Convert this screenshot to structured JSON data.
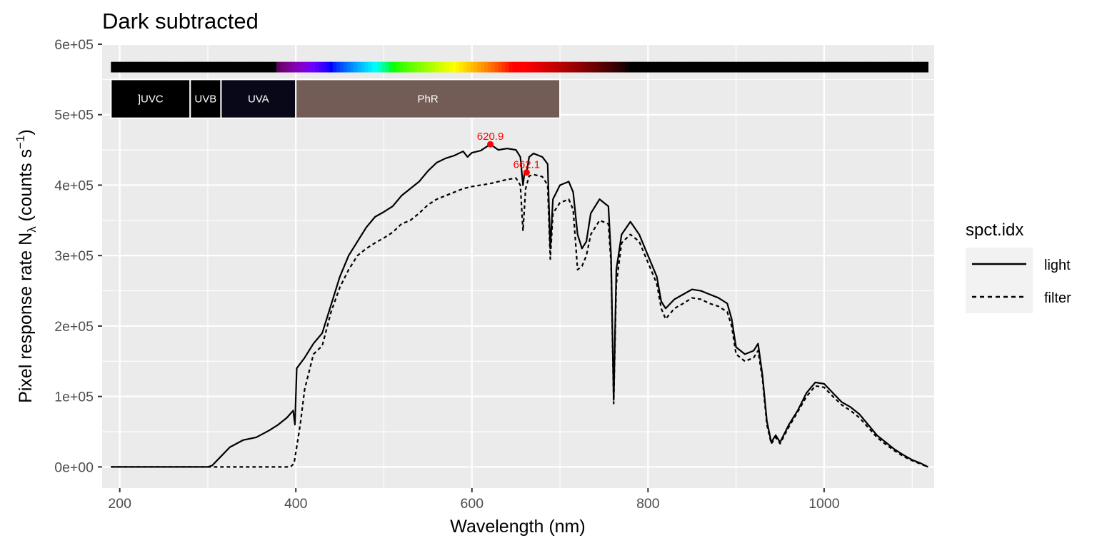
{
  "chart_data": {
    "type": "line",
    "title": "Dark subtracted",
    "xlabel": "Wavelength (nm)",
    "ylabel": {
      "prefix": "Pixel  response  rate  N",
      "sub": "λ",
      "mid": "  (counts  s",
      "sup": "−1",
      "suffix": ")"
    },
    "xlim": [
      180,
      1125
    ],
    "ylim": [
      -30000,
      600000
    ],
    "x_ticks": [
      200,
      400,
      600,
      800,
      1000
    ],
    "x_tick_labels": [
      "200",
      "400",
      "600",
      "800",
      "1000"
    ],
    "y_ticks": [
      0,
      100000,
      200000,
      300000,
      400000,
      500000,
      600000
    ],
    "y_tick_labels": [
      "0e+00",
      "1e+05",
      "2e+05",
      "3e+05",
      "4e+05",
      "5e+05",
      "6e+05"
    ],
    "grid": true,
    "legend_position": "right",
    "legend_title": "spct.idx",
    "series": [
      {
        "name": "light",
        "dash": "solid",
        "points": [
          [
            190,
            0
          ],
          [
            250,
            0
          ],
          [
            300,
            0
          ],
          [
            305,
            2000
          ],
          [
            315,
            15000
          ],
          [
            325,
            28000
          ],
          [
            340,
            38000
          ],
          [
            355,
            42000
          ],
          [
            370,
            52000
          ],
          [
            380,
            60000
          ],
          [
            390,
            70000
          ],
          [
            397,
            80000
          ],
          [
            399,
            60000
          ],
          [
            401,
            140000
          ],
          [
            410,
            155000
          ],
          [
            420,
            175000
          ],
          [
            430,
            190000
          ],
          [
            440,
            230000
          ],
          [
            450,
            270000
          ],
          [
            460,
            300000
          ],
          [
            470,
            320000
          ],
          [
            480,
            340000
          ],
          [
            490,
            355000
          ],
          [
            500,
            362000
          ],
          [
            510,
            370000
          ],
          [
            520,
            385000
          ],
          [
            530,
            395000
          ],
          [
            540,
            405000
          ],
          [
            550,
            420000
          ],
          [
            560,
            432000
          ],
          [
            570,
            438000
          ],
          [
            580,
            442000
          ],
          [
            590,
            448000
          ],
          [
            595,
            440000
          ],
          [
            600,
            446000
          ],
          [
            610,
            449000
          ],
          [
            620.9,
            458000
          ],
          [
            630,
            450000
          ],
          [
            640,
            452000
          ],
          [
            650,
            450000
          ],
          [
            655,
            440000
          ],
          [
            658,
            400000
          ],
          [
            660,
            420000
          ],
          [
            662.1,
            418000
          ],
          [
            665,
            440000
          ],
          [
            670,
            445000
          ],
          [
            680,
            440000
          ],
          [
            686,
            430000
          ],
          [
            689,
            310000
          ],
          [
            692,
            380000
          ],
          [
            700,
            400000
          ],
          [
            710,
            405000
          ],
          [
            715,
            390000
          ],
          [
            720,
            330000
          ],
          [
            725,
            310000
          ],
          [
            730,
            320000
          ],
          [
            735,
            360000
          ],
          [
            745,
            380000
          ],
          [
            755,
            370000
          ],
          [
            758,
            300000
          ],
          [
            761,
            95000
          ],
          [
            764,
            280000
          ],
          [
            770,
            330000
          ],
          [
            780,
            348000
          ],
          [
            790,
            330000
          ],
          [
            800,
            300000
          ],
          [
            810,
            270000
          ],
          [
            815,
            235000
          ],
          [
            820,
            225000
          ],
          [
            830,
            238000
          ],
          [
            840,
            245000
          ],
          [
            850,
            252000
          ],
          [
            860,
            250000
          ],
          [
            870,
            245000
          ],
          [
            880,
            240000
          ],
          [
            890,
            232000
          ],
          [
            895,
            210000
          ],
          [
            900,
            170000
          ],
          [
            910,
            160000
          ],
          [
            920,
            165000
          ],
          [
            925,
            175000
          ],
          [
            930,
            130000
          ],
          [
            935,
            65000
          ],
          [
            940,
            35000
          ],
          [
            945,
            45000
          ],
          [
            950,
            35000
          ],
          [
            960,
            60000
          ],
          [
            970,
            80000
          ],
          [
            980,
            105000
          ],
          [
            990,
            120000
          ],
          [
            1000,
            118000
          ],
          [
            1010,
            105000
          ],
          [
            1020,
            92000
          ],
          [
            1030,
            85000
          ],
          [
            1040,
            75000
          ],
          [
            1050,
            60000
          ],
          [
            1060,
            45000
          ],
          [
            1070,
            35000
          ],
          [
            1080,
            25000
          ],
          [
            1090,
            17000
          ],
          [
            1100,
            10000
          ],
          [
            1110,
            5000
          ],
          [
            1118,
            0
          ]
        ]
      },
      {
        "name": "filter",
        "dash": "dashed",
        "points": [
          [
            190,
            0
          ],
          [
            250,
            0
          ],
          [
            300,
            0
          ],
          [
            350,
            0
          ],
          [
            380,
            0
          ],
          [
            394,
            0
          ],
          [
            398,
            5000
          ],
          [
            405,
            60000
          ],
          [
            410,
            110000
          ],
          [
            420,
            160000
          ],
          [
            430,
            172000
          ],
          [
            440,
            220000
          ],
          [
            450,
            255000
          ],
          [
            460,
            280000
          ],
          [
            470,
            300000
          ],
          [
            480,
            310000
          ],
          [
            490,
            318000
          ],
          [
            500,
            325000
          ],
          [
            510,
            333000
          ],
          [
            520,
            345000
          ],
          [
            530,
            350000
          ],
          [
            540,
            360000
          ],
          [
            550,
            372000
          ],
          [
            560,
            380000
          ],
          [
            570,
            385000
          ],
          [
            580,
            390000
          ],
          [
            590,
            395000
          ],
          [
            600,
            398000
          ],
          [
            610,
            400000
          ],
          [
            620,
            402000
          ],
          [
            630,
            405000
          ],
          [
            640,
            408000
          ],
          [
            650,
            410000
          ],
          [
            655,
            400000
          ],
          [
            658,
            335000
          ],
          [
            661,
            395000
          ],
          [
            665,
            413000
          ],
          [
            670,
            415000
          ],
          [
            680,
            412000
          ],
          [
            686,
            400000
          ],
          [
            689,
            295000
          ],
          [
            692,
            360000
          ],
          [
            700,
            375000
          ],
          [
            710,
            380000
          ],
          [
            715,
            365000
          ],
          [
            720,
            280000
          ],
          [
            725,
            285000
          ],
          [
            730,
            300000
          ],
          [
            735,
            330000
          ],
          [
            745,
            350000
          ],
          [
            755,
            345000
          ],
          [
            758,
            290000
          ],
          [
            761,
            90000
          ],
          [
            764,
            260000
          ],
          [
            770,
            318000
          ],
          [
            780,
            330000
          ],
          [
            790,
            320000
          ],
          [
            800,
            290000
          ],
          [
            810,
            260000
          ],
          [
            815,
            225000
          ],
          [
            820,
            210000
          ],
          [
            830,
            225000
          ],
          [
            840,
            232000
          ],
          [
            850,
            240000
          ],
          [
            860,
            238000
          ],
          [
            870,
            232000
          ],
          [
            880,
            228000
          ],
          [
            890,
            220000
          ],
          [
            895,
            200000
          ],
          [
            900,
            160000
          ],
          [
            910,
            150000
          ],
          [
            920,
            155000
          ],
          [
            925,
            165000
          ],
          [
            930,
            125000
          ],
          [
            935,
            60000
          ],
          [
            940,
            33000
          ],
          [
            945,
            42000
          ],
          [
            950,
            33000
          ],
          [
            960,
            57000
          ],
          [
            970,
            78000
          ],
          [
            980,
            100000
          ],
          [
            990,
            115000
          ],
          [
            1000,
            113000
          ],
          [
            1010,
            100000
          ],
          [
            1020,
            88000
          ],
          [
            1030,
            80000
          ],
          [
            1040,
            70000
          ],
          [
            1050,
            56000
          ],
          [
            1060,
            42000
          ],
          [
            1070,
            32000
          ],
          [
            1080,
            23000
          ],
          [
            1090,
            15000
          ],
          [
            1100,
            9000
          ],
          [
            1110,
            4000
          ],
          [
            1118,
            0
          ]
        ]
      }
    ],
    "peaks": [
      {
        "x": 620.9,
        "y": 458000,
        "label": "620.9"
      },
      {
        "x": 662.1,
        "y": 418000,
        "label": "662.1"
      }
    ],
    "color_bar": {
      "x_range": [
        190,
        1118
      ],
      "y_range": [
        560000,
        575000
      ]
    },
    "wavebands": [
      {
        "label": "]UVC",
        "x_range": [
          190,
          280
        ],
        "fill": "#000000"
      },
      {
        "label": "UVB",
        "x_range": [
          280,
          315
        ],
        "fill": "#000000"
      },
      {
        "label": "UVA",
        "x_range": [
          315,
          400
        ],
        "fill": "#080818"
      },
      {
        "label": "PhR",
        "x_range": [
          400,
          700
        ],
        "fill": "#735c55"
      }
    ],
    "waveband_y_range": [
      495000,
      550000
    ]
  },
  "colors": {
    "panel_bg": "#ebebeb",
    "grid_major": "#ffffff",
    "line": "#000000",
    "peak": "#ff0000",
    "legend_key_bg": "#f2f2f2"
  }
}
